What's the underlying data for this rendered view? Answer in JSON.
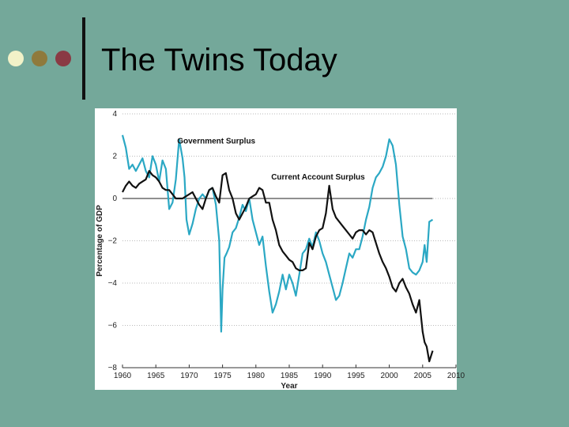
{
  "slide": {
    "title": "The Twins Today",
    "bullet_colors": [
      "#f2f2c8",
      "#8f7a3c",
      "#8a3a44"
    ]
  },
  "chart_data": {
    "type": "line",
    "title": "",
    "xlabel": "Year",
    "ylabel": "Percentage of GDP",
    "xlim": [
      1960,
      2010
    ],
    "ylim": [
      -8,
      4
    ],
    "x_ticks": [
      "1960",
      "1965",
      "1970",
      "1975",
      "1980",
      "1985",
      "1990",
      "1995",
      "2000",
      "2005",
      "2010"
    ],
    "y_ticks": [
      "4",
      "2",
      "0",
      "−2",
      "−4",
      "−6",
      "−8"
    ],
    "grid": true,
    "series": [
      {
        "name": "Government Surplus",
        "color": "#2ba8c4",
        "x": [
          1960,
          1960.5,
          1961,
          1961.5,
          1962,
          1962.5,
          1963,
          1963.5,
          1964,
          1964.5,
          1965,
          1965.5,
          1966,
          1966.5,
          1967,
          1967.5,
          1968,
          1968.5,
          1969,
          1969.3,
          1969.6,
          1970,
          1970.5,
          1971,
          1971.5,
          1972,
          1972.5,
          1973,
          1973.5,
          1974,
          1974.5,
          1974.8,
          1975,
          1975.3,
          1975.6,
          1976,
          1976.5,
          1977,
          1977.5,
          1978,
          1978.5,
          1979,
          1979.5,
          1980,
          1980.5,
          1981,
          1981.5,
          1982,
          1982.5,
          1983,
          1983.5,
          1984,
          1984.5,
          1985,
          1985.5,
          1986,
          1986.5,
          1987,
          1987.5,
          1988,
          1988.5,
          1989,
          1989.5,
          1990,
          1990.5,
          1991,
          1991.5,
          1992,
          1992.5,
          1993,
          1993.5,
          1994,
          1994.5,
          1995,
          1995.5,
          1996,
          1996.5,
          1997,
          1997.5,
          1998,
          1998.5,
          1999,
          1999.5,
          2000,
          2000.5,
          2001,
          2001.5,
          2002,
          2002.5,
          2003,
          2003.5,
          2004,
          2004.5,
          2005,
          2005.3,
          2005.6,
          2006,
          2006.5
        ],
        "y": [
          3.0,
          2.4,
          1.4,
          1.6,
          1.3,
          1.6,
          1.9,
          1.3,
          1.0,
          2.0,
          1.6,
          0.8,
          1.8,
          1.4,
          -0.5,
          -0.2,
          0.9,
          2.8,
          1.9,
          1.0,
          -1.0,
          -1.7,
          -1.2,
          -0.5,
          0.0,
          0.2,
          0.0,
          0.4,
          0.5,
          -0.3,
          -2.0,
          -6.3,
          -4.3,
          -2.8,
          -2.6,
          -2.3,
          -1.6,
          -1.4,
          -0.9,
          -0.3,
          -0.6,
          0.0,
          -1.0,
          -1.6,
          -2.2,
          -1.8,
          -3.2,
          -4.4,
          -5.4,
          -5.0,
          -4.4,
          -3.6,
          -4.3,
          -3.6,
          -4.0,
          -4.6,
          -3.6,
          -2.6,
          -2.4,
          -1.9,
          -2.3,
          -1.6,
          -2.0,
          -2.6,
          -3.0,
          -3.6,
          -4.2,
          -4.8,
          -4.6,
          -4.0,
          -3.3,
          -2.6,
          -2.8,
          -2.4,
          -2.4,
          -1.8,
          -1.0,
          -0.4,
          0.5,
          1.0,
          1.2,
          1.5,
          2.0,
          2.8,
          2.5,
          1.6,
          -0.3,
          -1.8,
          -2.4,
          -3.3,
          -3.5,
          -3.6,
          -3.4,
          -3.0,
          -2.2,
          -3.0,
          -1.1,
          -1.0
        ]
      },
      {
        "name": "Current Account Surplus",
        "color": "#111111",
        "x": [
          1960,
          1960.5,
          1961,
          1961.5,
          1962,
          1962.5,
          1963,
          1963.5,
          1964,
          1964.5,
          1965,
          1965.5,
          1966,
          1966.5,
          1967,
          1967.5,
          1968,
          1968.5,
          1969,
          1969.5,
          1970,
          1970.5,
          1971,
          1971.5,
          1972,
          1972.5,
          1973,
          1973.5,
          1974,
          1974.5,
          1975,
          1975.5,
          1976,
          1976.5,
          1977,
          1977.5,
          1978,
          1978.5,
          1979,
          1979.5,
          1980,
          1980.5,
          1981,
          1981.5,
          1982,
          1982.5,
          1983,
          1983.5,
          1984,
          1984.5,
          1985,
          1985.5,
          1986,
          1986.5,
          1987,
          1987.5,
          1988,
          1988.5,
          1989,
          1989.5,
          1990,
          1990.5,
          1991,
          1991.5,
          1992,
          1992.5,
          1993,
          1993.5,
          1994,
          1994.5,
          1995,
          1995.5,
          1996,
          1996.5,
          1997,
          1997.5,
          1998,
          1998.5,
          1999,
          1999.5,
          2000,
          2000.5,
          2001,
          2001.5,
          2002,
          2002.5,
          2003,
          2003.5,
          2004,
          2004.5,
          2005,
          2005.3,
          2005.6,
          2006,
          2006.5
        ],
        "y": [
          0.3,
          0.6,
          0.8,
          0.6,
          0.5,
          0.7,
          0.8,
          0.9,
          1.3,
          1.1,
          1.0,
          0.8,
          0.5,
          0.4,
          0.4,
          0.2,
          0.0,
          0.0,
          0.0,
          0.1,
          0.2,
          0.3,
          0.0,
          -0.3,
          -0.5,
          0.0,
          0.4,
          0.5,
          0.1,
          -0.2,
          1.1,
          1.2,
          0.4,
          0.0,
          -0.7,
          -1.0,
          -0.7,
          -0.4,
          0.0,
          0.1,
          0.2,
          0.5,
          0.4,
          -0.2,
          -0.2,
          -1.0,
          -1.5,
          -2.2,
          -2.5,
          -2.7,
          -2.9,
          -3.0,
          -3.3,
          -3.4,
          -3.4,
          -3.3,
          -2.1,
          -2.4,
          -1.8,
          -1.5,
          -1.4,
          -0.7,
          0.6,
          -0.5,
          -0.9,
          -1.1,
          -1.3,
          -1.5,
          -1.7,
          -1.9,
          -1.6,
          -1.5,
          -1.5,
          -1.7,
          -1.5,
          -1.6,
          -2.1,
          -2.6,
          -3.0,
          -3.3,
          -3.7,
          -4.2,
          -4.4,
          -4.0,
          -3.8,
          -4.2,
          -4.5,
          -5.0,
          -5.4,
          -4.8,
          -6.3,
          -6.8,
          -7.0,
          -7.7,
          -7.2
        ]
      }
    ]
  }
}
